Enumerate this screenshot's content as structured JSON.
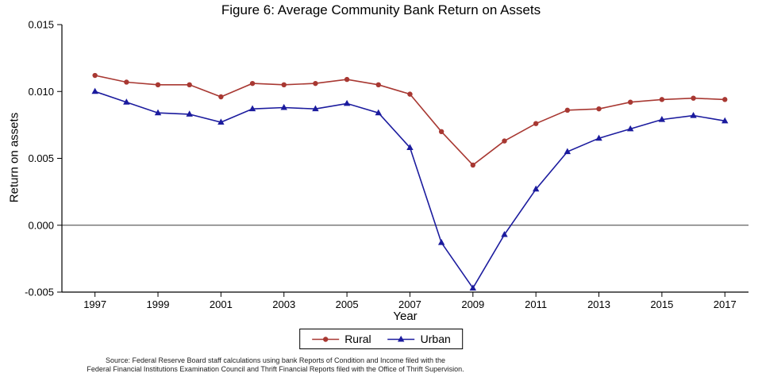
{
  "source": {
    "line1": "Source: Federal Reserve Board staff calculations using bank Reports of Condition and Income filed with the",
    "line2": "Federal Financial Institutions Examination Council and Thrift Financial Reports filed with the Office of Thrift Supervision."
  },
  "chart_data": {
    "type": "line",
    "title": "Figure 6: Average Community Bank Return on Assets",
    "xlabel": "Year",
    "ylabel": "Return on assets",
    "ylim": [
      -0.005,
      0.015
    ],
    "x_range": [
      1995.95,
      2017.75
    ],
    "grid": false,
    "legend_position": "bottom",
    "zero_line": 0,
    "x": [
      1997,
      1998,
      1999,
      2000,
      2001,
      2002,
      2003,
      2004,
      2005,
      2006,
      2007,
      2008,
      2009,
      2010,
      2011,
      2012,
      2013,
      2014,
      2015,
      2016,
      2017
    ],
    "x_ticks": [
      1997,
      1999,
      2001,
      2003,
      2005,
      2007,
      2009,
      2011,
      2013,
      2015,
      2017
    ],
    "y_ticks": [
      {
        "value": -0.005,
        "label": "-0.005"
      },
      {
        "value": 0.0,
        "label": "0.000"
      },
      {
        "value": 0.005,
        "label": "0.005"
      },
      {
        "value": 0.01,
        "label": "0.010"
      },
      {
        "value": 0.015,
        "label": "0.015"
      }
    ],
    "series": [
      {
        "name": "Rural",
        "color": "#a83832",
        "marker": "circle",
        "values": [
          0.0112,
          0.0107,
          0.0105,
          0.0105,
          0.0096,
          0.0106,
          0.0105,
          0.0106,
          0.0109,
          0.0105,
          0.0098,
          0.007,
          0.0045,
          0.0063,
          0.0076,
          0.0086,
          0.0087,
          0.0092,
          0.0094,
          0.0095,
          0.0094
        ]
      },
      {
        "name": "Urban",
        "color": "#1b1b9e",
        "marker": "triangle",
        "values": [
          0.01,
          0.0092,
          0.0084,
          0.0083,
          0.0077,
          0.0087,
          0.0088,
          0.0087,
          0.0091,
          0.0084,
          0.0058,
          -0.0013,
          -0.0047,
          -0.0007,
          0.0027,
          0.0055,
          0.0065,
          0.0072,
          0.0079,
          0.0082,
          0.0078
        ]
      }
    ]
  }
}
